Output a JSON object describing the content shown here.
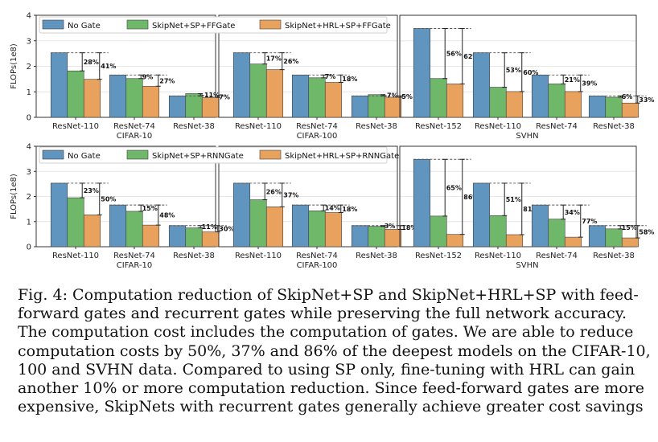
{
  "legend": {
    "top": [
      "No Gate",
      "SkipNet+SP+FFGate",
      "SkipNet+HRL+SP+FFGate"
    ],
    "bottom": [
      "No Gate",
      "SkipNet+SP+RNNGate",
      "SkipNet+HRL+SP+RNNGate"
    ]
  },
  "colors": {
    "no_gate": "#5f95be",
    "sp": "#6fb86a",
    "hrl": "#e9a25d"
  },
  "caption": {
    "label": "Fig. 4:",
    "text": "Computation reduction of SkipNet+SP and SkipNet+HRL+SP with feed-forward gates and recurrent gates while preserving the full network accuracy. The computation cost includes the computation of gates. We are able to reduce computation costs by 50%, 37% and 86% of the deepest models on the CIFAR-10, 100 and SVHN data. Compared to using SP only, fine-tuning with HRL can gain another 10% or more computation reduction. Since feed-forward gates are more expensive, SkipNets with recurrent gates generally achieve greater cost savings"
  },
  "chart_data": [
    {
      "type": "bar",
      "row": "top",
      "dataset": "CIFAR-10",
      "ylabel": "FLOPs(1e8)",
      "yticks": [
        "0",
        "1",
        "2",
        "3",
        "4"
      ],
      "ylim": [
        0,
        4
      ],
      "categories": [
        "ResNet-110",
        "ResNet-74",
        "ResNet-38"
      ],
      "series": [
        {
          "name": "No Gate",
          "values": [
            2.53,
            1.66,
            0.84
          ]
        },
        {
          "name": "SkipNet+SP+FFGate",
          "values": [
            1.82,
            1.52,
            0.93
          ]
        },
        {
          "name": "SkipNet+HRL+SP+FFGate",
          "values": [
            1.49,
            1.22,
            0.78
          ]
        }
      ],
      "labels": [
        [
          "28%",
          "41%"
        ],
        [
          "9%",
          "27%"
        ],
        [
          "-11%",
          "7%"
        ]
      ]
    },
    {
      "type": "bar",
      "row": "top",
      "dataset": "CIFAR-100",
      "ylim": [
        0,
        4
      ],
      "categories": [
        "ResNet-110",
        "ResNet-74",
        "ResNet-38"
      ],
      "series": [
        {
          "name": "No Gate",
          "values": [
            2.53,
            1.66,
            0.84
          ]
        },
        {
          "name": "SkipNet+SP+FFGate",
          "values": [
            2.09,
            1.55,
            0.89
          ]
        },
        {
          "name": "SkipNet+HRL+SP+FFGate",
          "values": [
            1.87,
            1.37,
            0.79
          ]
        }
      ],
      "labels": [
        [
          "17%",
          "26%"
        ],
        [
          "7%",
          "18%"
        ],
        [
          "-7%",
          "5%"
        ]
      ]
    },
    {
      "type": "bar",
      "row": "top",
      "dataset": "SVHN",
      "ylim": [
        0,
        4
      ],
      "categories": [
        "ResNet-152",
        "ResNet-110",
        "ResNet-74",
        "ResNet-38"
      ],
      "series": [
        {
          "name": "No Gate",
          "values": [
            3.48,
            2.53,
            1.66,
            0.84
          ]
        },
        {
          "name": "SkipNet+SP+FFGate",
          "values": [
            1.52,
            1.18,
            1.31,
            0.79
          ]
        },
        {
          "name": "SkipNet+HRL+SP+FFGate",
          "values": [
            1.31,
            1.01,
            1.01,
            0.56
          ]
        }
      ],
      "labels": [
        [
          "56%",
          "62%"
        ],
        [
          "53%",
          "60%"
        ],
        [
          "21%",
          "39%"
        ],
        [
          "6%",
          "33%"
        ]
      ]
    },
    {
      "type": "bar",
      "row": "bottom",
      "dataset": "CIFAR-10",
      "ylabel": "FLOPs(1e8)",
      "yticks": [
        "0",
        "1",
        "2",
        "3",
        "4"
      ],
      "ylim": [
        0,
        4
      ],
      "categories": [
        "ResNet-110",
        "ResNet-74",
        "ResNet-38"
      ],
      "series": [
        {
          "name": "No Gate",
          "values": [
            2.53,
            1.66,
            0.84
          ]
        },
        {
          "name": "SkipNet+SP+RNNGate",
          "values": [
            1.95,
            1.41,
            0.75
          ]
        },
        {
          "name": "SkipNet+HRL+SP+RNNGate",
          "values": [
            1.27,
            0.86,
            0.59
          ]
        }
      ],
      "labels": [
        [
          "23%",
          "50%"
        ],
        [
          "15%",
          "48%"
        ],
        [
          "11%",
          "30%"
        ]
      ]
    },
    {
      "type": "bar",
      "row": "bottom",
      "dataset": "CIFAR-100",
      "ylim": [
        0,
        4
      ],
      "categories": [
        "ResNet-110",
        "ResNet-74",
        "ResNet-38"
      ],
      "series": [
        {
          "name": "No Gate",
          "values": [
            2.53,
            1.66,
            0.84
          ]
        },
        {
          "name": "SkipNet+SP+RNNGate",
          "values": [
            1.87,
            1.43,
            0.81
          ]
        },
        {
          "name": "SkipNet+HRL+SP+RNNGate",
          "values": [
            1.59,
            1.36,
            0.69
          ]
        }
      ],
      "labels": [
        [
          "26%",
          "37%"
        ],
        [
          "14%",
          "18%"
        ],
        [
          "3%",
          "18%"
        ]
      ]
    },
    {
      "type": "bar",
      "row": "bottom",
      "dataset": "SVHN",
      "ylim": [
        0,
        4
      ],
      "categories": [
        "ResNet-152",
        "ResNet-110",
        "ResNet-74",
        "ResNet-38"
      ],
      "series": [
        {
          "name": "No Gate",
          "values": [
            3.48,
            2.53,
            1.66,
            0.84
          ]
        },
        {
          "name": "SkipNet+SP+RNNGate",
          "values": [
            1.22,
            1.24,
            1.1,
            0.71
          ]
        },
        {
          "name": "SkipNet+HRL+SP+RNNGate",
          "values": [
            0.49,
            0.48,
            0.38,
            0.35
          ]
        }
      ],
      "labels": [
        [
          "65%",
          "86%"
        ],
        [
          "51%",
          "81%"
        ],
        [
          "34%",
          "77%"
        ],
        [
          "15%",
          "58%"
        ]
      ]
    }
  ]
}
